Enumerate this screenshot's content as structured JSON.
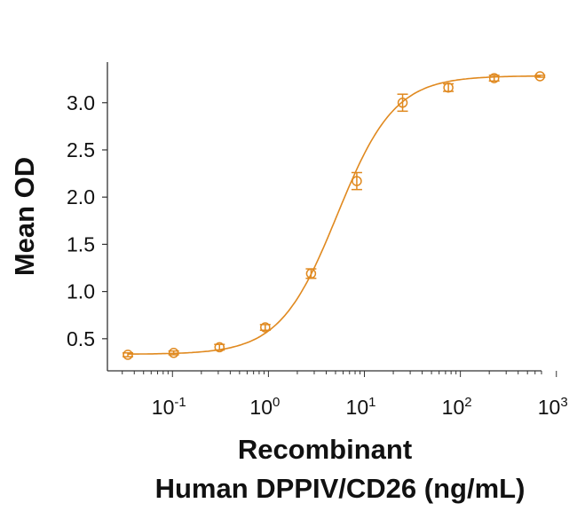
{
  "chart_data": {
    "type": "scatter",
    "title": "",
    "xlabel_lines": [
      "Recombinant",
      "Human DPPIV/CD26 (ng/mL)"
    ],
    "ylabel": "Mean OD",
    "xscale": "log",
    "xlim": [
      0.021,
      700
    ],
    "ylim": [
      0.16,
      3.43
    ],
    "xticks": [
      0.1,
      1,
      10,
      100,
      1000
    ],
    "xtick_labels": [
      {
        "base": "10",
        "exp": "-1"
      },
      {
        "base": "10",
        "exp": "0"
      },
      {
        "base": "10",
        "exp": "1"
      },
      {
        "base": "10",
        "exp": "2"
      },
      {
        "base": "10",
        "exp": "3"
      }
    ],
    "yticks": [
      0.5,
      1.0,
      1.5,
      2.0,
      2.5,
      3.0
    ],
    "ytick_labels": [
      "0.5",
      "1.0",
      "1.5",
      "2.0",
      "2.5",
      "3.0"
    ],
    "grid": false,
    "color": "#E0891F",
    "series": [
      {
        "name": "Recombinant Human DPPIV/CD26",
        "x": [
          0.0343,
          0.103,
          0.309,
          0.926,
          2.78,
          8.33,
          25,
          75,
          225,
          675
        ],
        "y": [
          0.33,
          0.35,
          0.41,
          0.62,
          1.19,
          2.17,
          3.0,
          3.16,
          3.26,
          3.28
        ],
        "error": [
          0.02,
          0.02,
          0.03,
          0.03,
          0.05,
          0.09,
          0.09,
          0.04,
          0.03,
          0.01
        ]
      }
    ],
    "fit": {
      "model": "4PL",
      "bottom": 0.335,
      "top": 3.285,
      "ec50": 5.2,
      "hill": 1.45
    }
  }
}
